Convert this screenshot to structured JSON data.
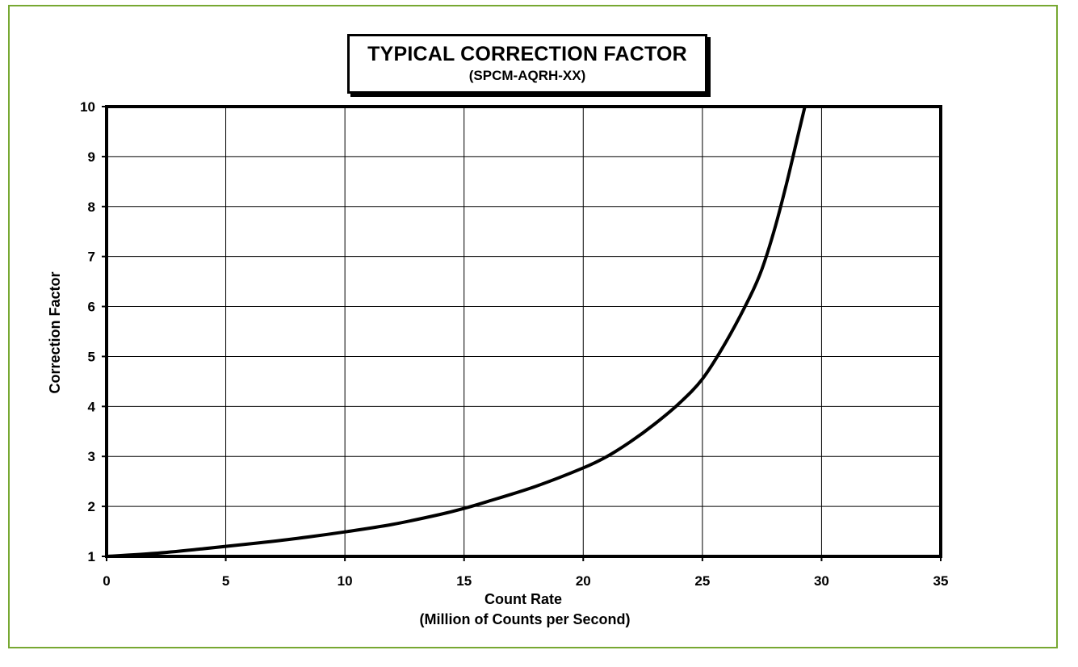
{
  "chart_data": {
    "type": "line",
    "title": "TYPICAL CORRECTION FACTOR",
    "subtitle": "(SPCM-AQRH-XX)",
    "xlabel": "Count Rate",
    "xlabel_sub": "(Million of Counts per Second)",
    "ylabel": "Correction Factor",
    "xlim": [
      0,
      35
    ],
    "ylim": [
      1,
      10
    ],
    "xticks": [
      0,
      5,
      10,
      15,
      20,
      25,
      30,
      35
    ],
    "yticks": [
      1,
      2,
      3,
      4,
      5,
      6,
      7,
      8,
      9,
      10
    ],
    "grid": true,
    "series": [
      {
        "x": [
          0,
          2,
          4,
          6,
          8,
          10,
          12,
          14,
          15,
          16,
          18,
          20,
          21,
          22,
          23,
          24,
          25,
          26,
          27,
          27.5,
          28,
          28.5,
          29,
          29.3
        ],
        "y": [
          1.0,
          1.06,
          1.15,
          1.25,
          1.36,
          1.49,
          1.64,
          1.84,
          1.96,
          2.1,
          2.4,
          2.77,
          3.0,
          3.3,
          3.65,
          4.05,
          4.55,
          5.3,
          6.2,
          6.75,
          7.5,
          8.4,
          9.4,
          10.0
        ],
        "color": "#000000"
      }
    ],
    "frame_color": "#77a832"
  }
}
